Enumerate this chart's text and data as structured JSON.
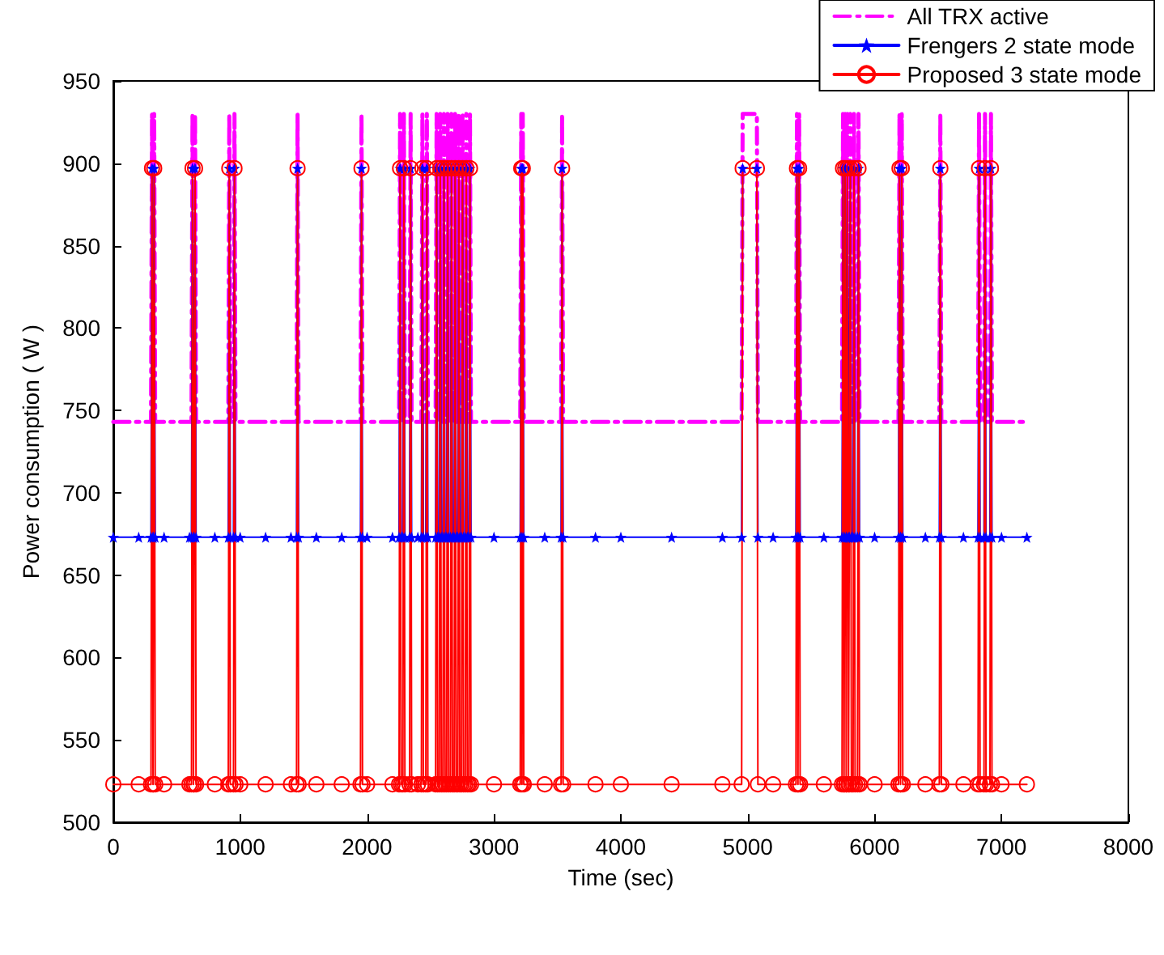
{
  "chart_data": {
    "type": "line",
    "xlabel": "Time (sec)",
    "ylabel": "Power consumption ( W )",
    "x": [
      0,
      200,
      297,
      305,
      313,
      314,
      322,
      330,
      400,
      600,
      616,
      624,
      632,
      636,
      644,
      652,
      800,
      906,
      914,
      922,
      947,
      955,
      963,
      1000,
      1200,
      1400,
      1444,
      1452,
      1460,
      1600,
      1800,
      1948,
      1956,
      1964,
      2000,
      2200,
      2252,
      2260,
      2268,
      2282,
      2290,
      2298,
      2335,
      2343,
      2351,
      2400,
      2428,
      2436,
      2444,
      2463,
      2471,
      2479,
      2540,
      2548,
      2556,
      2569,
      2577,
      2585,
      2598,
      2606,
      2614,
      2627,
      2635,
      2643,
      2657,
      2665,
      2673,
      2686,
      2694,
      2702,
      2715,
      2723,
      2731,
      2744,
      2752,
      2760,
      2774,
      2782,
      2790,
      2803,
      2811,
      2819,
      3000,
      3207,
      3215,
      3221,
      3227,
      3235,
      3400,
      3529,
      3537,
      3545,
      3800,
      4000,
      4400,
      4800,
      4952,
      4960,
      5072,
      5080,
      5200,
      5380,
      5388,
      5396,
      5397,
      5405,
      5413,
      5600,
      5743,
      5751,
      5759,
      5760,
      5768,
      5776,
      5778,
      5786,
      5794,
      5801,
      5809,
      5817,
      5830,
      5838,
      5846,
      5865,
      5873,
      5881,
      6000,
      6188,
      6196,
      6204,
      6206,
      6214,
      6222,
      6400,
      6510,
      6518,
      6526,
      6700,
      6815,
      6823,
      6831,
      6862,
      6870,
      6878,
      6909,
      6917,
      6925,
      7000,
      7200
    ],
    "series": [
      {
        "name": "All TRX active",
        "color": "#ff00ff",
        "marker": "none",
        "line_style": "dashdot",
        "values": [
          743,
          743,
          743,
          930,
          743,
          743,
          930,
          743,
          743,
          743,
          743,
          930,
          743,
          743,
          930,
          743,
          743,
          743,
          930,
          743,
          743,
          930,
          743,
          743,
          743,
          743,
          743,
          930,
          743,
          743,
          743,
          743,
          930,
          743,
          743,
          743,
          743,
          930,
          743,
          743,
          930,
          743,
          743,
          930,
          743,
          743,
          743,
          930,
          743,
          743,
          930,
          743,
          743,
          930,
          743,
          743,
          930,
          743,
          743,
          930,
          743,
          743,
          930,
          743,
          743,
          930,
          743,
          743,
          930,
          743,
          743,
          930,
          743,
          743,
          930,
          743,
          743,
          930,
          743,
          743,
          930,
          743,
          743,
          743,
          930,
          743,
          930,
          743,
          743,
          743,
          930,
          743,
          743,
          743,
          743,
          743,
          743,
          930,
          930,
          743,
          743,
          743,
          930,
          743,
          743,
          930,
          743,
          743,
          743,
          930,
          743,
          743,
          930,
          743,
          743,
          930,
          743,
          743,
          930,
          743,
          743,
          930,
          743,
          743,
          930,
          743,
          743,
          743,
          930,
          743,
          743,
          930,
          743,
          743,
          743,
          930,
          743,
          743,
          743,
          930,
          743,
          743,
          930,
          743,
          743,
          930,
          743,
          743,
          743
        ]
      },
      {
        "name": "Frengers 2 state mode",
        "color": "#0000ff",
        "marker": "star",
        "line_style": "solid",
        "values": [
          673,
          673,
          673,
          897,
          673,
          673,
          897,
          673,
          673,
          673,
          673,
          897,
          673,
          673,
          897,
          673,
          673,
          673,
          897,
          673,
          673,
          897,
          673,
          673,
          673,
          673,
          673,
          897,
          673,
          673,
          673,
          673,
          897,
          673,
          673,
          673,
          673,
          897,
          673,
          673,
          897,
          673,
          673,
          897,
          673,
          673,
          673,
          897,
          673,
          673,
          897,
          673,
          673,
          897,
          673,
          673,
          897,
          673,
          673,
          897,
          673,
          673,
          897,
          673,
          673,
          897,
          673,
          673,
          897,
          673,
          673,
          897,
          673,
          673,
          897,
          673,
          673,
          897,
          673,
          673,
          897,
          673,
          673,
          673,
          897,
          673,
          897,
          673,
          673,
          673,
          897,
          673,
          673,
          673,
          673,
          673,
          673,
          897,
          897,
          673,
          673,
          673,
          897,
          673,
          673,
          897,
          673,
          673,
          673,
          897,
          673,
          673,
          897,
          673,
          673,
          897,
          673,
          673,
          897,
          673,
          673,
          897,
          673,
          673,
          897,
          673,
          673,
          673,
          897,
          673,
          673,
          897,
          673,
          673,
          673,
          897,
          673,
          673,
          673,
          897,
          673,
          673,
          897,
          673,
          673,
          897,
          673,
          673,
          673
        ]
      },
      {
        "name": "Proposed 3 state mode",
        "color": "#ff0000",
        "marker": "circle",
        "line_style": "solid",
        "values": [
          523,
          523,
          523,
          897,
          523,
          523,
          897,
          523,
          523,
          523,
          523,
          897,
          523,
          523,
          897,
          523,
          523,
          523,
          897,
          523,
          523,
          897,
          523,
          523,
          523,
          523,
          523,
          897,
          523,
          523,
          523,
          523,
          897,
          523,
          523,
          523,
          523,
          897,
          523,
          523,
          897,
          523,
          523,
          897,
          523,
          523,
          523,
          897,
          523,
          523,
          897,
          523,
          523,
          897,
          523,
          523,
          897,
          523,
          523,
          897,
          523,
          523,
          897,
          523,
          523,
          897,
          523,
          523,
          897,
          523,
          523,
          897,
          523,
          523,
          897,
          523,
          523,
          897,
          523,
          523,
          897,
          523,
          523,
          523,
          897,
          523,
          897,
          523,
          523,
          523,
          897,
          523,
          523,
          523,
          523,
          523,
          523,
          897,
          897,
          523,
          523,
          523,
          897,
          523,
          523,
          897,
          523,
          523,
          523,
          897,
          523,
          523,
          897,
          523,
          523,
          897,
          523,
          523,
          897,
          523,
          523,
          897,
          523,
          523,
          897,
          523,
          523,
          523,
          897,
          523,
          523,
          897,
          523,
          523,
          523,
          897,
          523,
          523,
          523,
          897,
          523,
          523,
          897,
          523,
          523,
          897,
          523,
          523,
          523
        ]
      }
    ],
    "xlim": [
      0,
      8000
    ],
    "xticks": [
      0,
      1000,
      2000,
      3000,
      4000,
      5000,
      6000,
      7000,
      8000
    ],
    "ylim": [
      500,
      950
    ],
    "yticks": [
      500,
      550,
      600,
      650,
      700,
      750,
      800,
      850,
      900,
      950
    ],
    "grid": false,
    "legend": "top right"
  }
}
